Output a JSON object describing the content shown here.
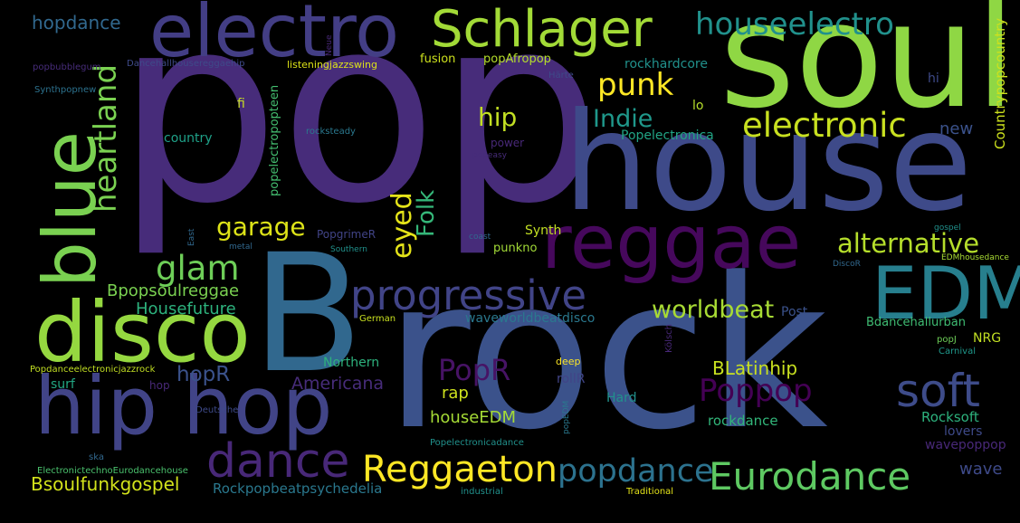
{
  "words": [
    {
      "text": "pop",
      "color": "#472c7a"
    },
    {
      "text": "rock",
      "color": "#3b528b"
    },
    {
      "text": "B",
      "color": "#31688e"
    },
    {
      "text": "soul",
      "color": "#8fd744"
    },
    {
      "text": "house",
      "color": "#3e4a89"
    },
    {
      "text": "electro",
      "color": "#433e85"
    },
    {
      "text": "hip hop",
      "color": "#414487"
    },
    {
      "text": "disco",
      "color": "#95d840"
    },
    {
      "text": "reggae",
      "color": "#46085c"
    },
    {
      "text": "blue",
      "color": "#7ad151"
    },
    {
      "text": "EDM",
      "color": "#277f8e"
    },
    {
      "text": "Schlager",
      "color": "#a2da37"
    },
    {
      "text": "dance",
      "color": "#482878"
    },
    {
      "text": "Reggaeton",
      "color": "#fde725"
    },
    {
      "text": "Eurodance",
      "color": "#5ec962"
    },
    {
      "text": "soft",
      "color": "#3e4c8a"
    },
    {
      "text": "progressive",
      "color": "#414487"
    },
    {
      "text": "popdance",
      "color": "#2c728e"
    },
    {
      "text": "houseelectro",
      "color": "#21918c"
    },
    {
      "text": "electronic",
      "color": "#c8e020"
    },
    {
      "text": "alternative",
      "color": "#b5de2b"
    },
    {
      "text": "worldbeat",
      "color": "#a8db34"
    },
    {
      "text": "Poppop",
      "color": "#440154"
    },
    {
      "text": "heartland",
      "color": "#7ad151"
    },
    {
      "text": "punk",
      "color": "#fde725"
    },
    {
      "text": "glam",
      "color": "#6ece58"
    },
    {
      "text": "garage",
      "color": "#dde318"
    },
    {
      "text": "PopR",
      "color": "#471365"
    },
    {
      "text": "eyed",
      "color": "#e5e419"
    },
    {
      "text": "Folk",
      "color": "#35b779"
    },
    {
      "text": "hip",
      "color": "#c2df23"
    },
    {
      "text": "Indie",
      "color": "#1f988b"
    },
    {
      "text": "Bsoulfunkgospel",
      "color": "#d2e21b"
    },
    {
      "text": "hopR",
      "color": "#3b528b"
    },
    {
      "text": "Americana",
      "color": "#472c7a"
    },
    {
      "text": "Bpopsoulreggae",
      "color": "#7ad151"
    },
    {
      "text": "Housefuture",
      "color": "#2db27d"
    },
    {
      "text": "BLatinhip",
      "color": "#c8e020"
    },
    {
      "text": "houseEDM",
      "color": "#a5db36"
    },
    {
      "text": "Rockpopbeatpsychedelia",
      "color": "#2a788e"
    },
    {
      "text": "hopdance",
      "color": "#31688e"
    },
    {
      "text": "Countrypopcountry",
      "color": "#cde11d"
    },
    {
      "text": "rap",
      "color": "#cde11d"
    },
    {
      "text": "Rocksoft",
      "color": "#2db27d"
    },
    {
      "text": "wave",
      "color": "#3e4a89"
    },
    {
      "text": "new",
      "color": "#3b528b"
    },
    {
      "text": "rockdance",
      "color": "#32b67a"
    },
    {
      "text": "wavepoppop",
      "color": "#482878"
    },
    {
      "text": "lovers",
      "color": "#3e4a89"
    },
    {
      "text": "Popelectronica",
      "color": "#21a585"
    },
    {
      "text": "waveworldbeatdisco",
      "color": "#2a788e"
    },
    {
      "text": "rockhardcore",
      "color": "#21918c"
    },
    {
      "text": "popAfropop",
      "color": "#b5de2b"
    },
    {
      "text": "fusion",
      "color": "#cde11d"
    },
    {
      "text": "popelectropopteen",
      "color": "#44bf70"
    },
    {
      "text": "Synth",
      "color": "#c2df23"
    },
    {
      "text": "punkno",
      "color": "#a2da37"
    },
    {
      "text": "country",
      "color": "#1fa188"
    },
    {
      "text": "Northern",
      "color": "#2db27d"
    },
    {
      "text": "surf",
      "color": "#22a884"
    },
    {
      "text": "hop",
      "color": "#482878"
    },
    {
      "text": "Hard",
      "color": "#21918c"
    },
    {
      "text": "NRG",
      "color": "#c2df23"
    },
    {
      "text": "Bdancehallurban",
      "color": "#3fbc73"
    },
    {
      "text": "Post",
      "color": "#3b528b"
    },
    {
      "text": "rollR",
      "color": "#414487"
    },
    {
      "text": "power",
      "color": "#482878"
    },
    {
      "text": "PopgrimeR",
      "color": "#414487"
    },
    {
      "text": "fi",
      "color": "#c8e020"
    },
    {
      "text": "lo",
      "color": "#b5de2b"
    },
    {
      "text": "hi",
      "color": "#3e4a89"
    },
    {
      "text": "Härte",
      "color": "#3e4a89"
    },
    {
      "text": "listeningjazzswing",
      "color": "#dde318"
    },
    {
      "text": "Dancehallhousereggaehip",
      "color": "#3e4a89"
    },
    {
      "text": "popbubblegum",
      "color": "#472c7a"
    },
    {
      "text": "Synthpopnew",
      "color": "#2c728e"
    },
    {
      "text": "Neue",
      "color": "#482878"
    },
    {
      "text": "rocksteady",
      "color": "#2a788e"
    },
    {
      "text": "popeasy",
      "color": "#472c7a"
    },
    {
      "text": "gospel",
      "color": "#21918c"
    },
    {
      "text": "EDMhousedance",
      "color": "#a8db34"
    },
    {
      "text": "DiscoR",
      "color": "#31688e"
    },
    {
      "text": "metal",
      "color": "#31688e"
    },
    {
      "text": "East",
      "color": "#31688e"
    },
    {
      "text": "Southern",
      "color": "#21918c"
    },
    {
      "text": "coast",
      "color": "#31688e"
    },
    {
      "text": "German",
      "color": "#c8e020"
    },
    {
      "text": "Kölsch",
      "color": "#482878"
    },
    {
      "text": "popJ",
      "color": "#6ece58"
    },
    {
      "text": "Carnival",
      "color": "#1f988b"
    },
    {
      "text": "Popdanceelectronicjazzrock",
      "color": "#c2df23"
    },
    {
      "text": "deep",
      "color": "#fde725"
    },
    {
      "text": "Deutsche",
      "color": "#3e4a89"
    },
    {
      "text": "popEDM",
      "color": "#2a788e"
    },
    {
      "text": "ska",
      "color": "#31688e"
    },
    {
      "text": "ElectronictechnoEurodancehouse",
      "color": "#4ac16d"
    },
    {
      "text": "Popelectronicadance",
      "color": "#21918c"
    },
    {
      "text": "industrial",
      "color": "#21918c"
    },
    {
      "text": "Traditional",
      "color": "#e5e419"
    }
  ]
}
